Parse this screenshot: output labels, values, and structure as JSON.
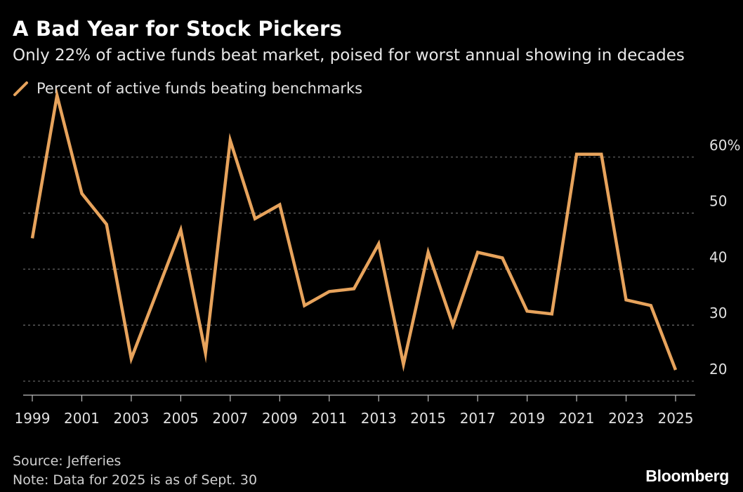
{
  "header": {
    "title": "A Bad Year for Stock Pickers",
    "subtitle": "Only 22% of active funds beat market, poised for worst annual showing in decades"
  },
  "legend": {
    "label": "Percent of active funds beating benchmarks",
    "icon": "line-swatch-icon"
  },
  "footer": {
    "source": "Source: Jefferies",
    "note": "Note: Data for 2025 is as of Sept. 30",
    "brand": "Bloomberg"
  },
  "colors": {
    "background": "#000000",
    "series": "#E7A35C",
    "grid": "#6b6b6b",
    "axis": "#bfbfbf"
  },
  "chart_data": {
    "type": "line",
    "title": "A Bad Year for Stock Pickers",
    "subtitle": "Only 22% of active funds beat market, poised for worst annual showing in decades",
    "xlabel": "",
    "ylabel": "",
    "ylim": [
      17.5,
      69.5
    ],
    "yticks": [
      20,
      30,
      40,
      50,
      60
    ],
    "ytick_labels": [
      "20",
      "30",
      "40",
      "50",
      "60%"
    ],
    "xticks": [
      1999,
      2001,
      2003,
      2005,
      2007,
      2009,
      2011,
      2013,
      2015,
      2017,
      2019,
      2021,
      2023,
      2025
    ],
    "xtick_labels": [
      "1999",
      "2001",
      "2003",
      "2005",
      "2007",
      "2009",
      "2011",
      "2013",
      "2015",
      "2017",
      "2019",
      "2021",
      "2023",
      "2025"
    ],
    "xlim": [
      1999,
      2025
    ],
    "grid": true,
    "y_axis_position": "right",
    "legend_position": "top-left",
    "series": [
      {
        "name": "Percent of active funds beating benchmarks",
        "x": [
          1999,
          2000,
          2001,
          2002,
          2003,
          2004,
          2005,
          2006,
          2007,
          2008,
          2009,
          2010,
          2011,
          2012,
          2013,
          2014,
          2015,
          2016,
          2017,
          2018,
          2019,
          2020,
          2021,
          2022,
          2023,
          2024,
          2025
        ],
        "values": [
          45.5,
          71,
          53.5,
          48,
          24,
          35.5,
          47,
          25,
          63,
          49,
          51.5,
          33.5,
          36,
          36.5,
          44.5,
          23,
          43,
          30,
          43,
          42,
          32.5,
          32,
          60.5,
          60.5,
          34.5,
          33.5,
          22
        ]
      }
    ]
  }
}
